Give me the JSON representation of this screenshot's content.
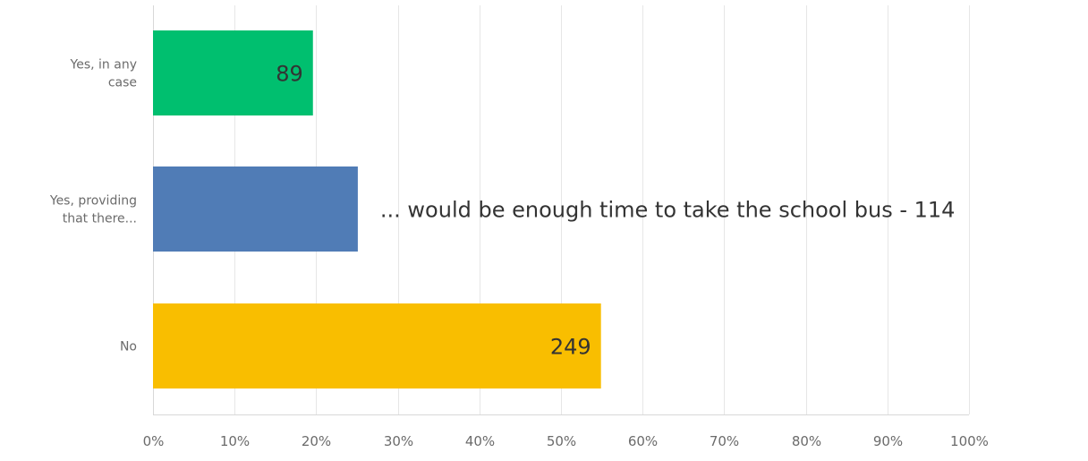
{
  "chart_data": {
    "type": "bar",
    "orientation": "horizontal",
    "categories": [
      "Yes, in any case",
      "Yes, providing that there...",
      "No"
    ],
    "category_lines": [
      [
        "Yes, in any",
        "case"
      ],
      [
        "Yes, providing",
        "that there..."
      ],
      [
        "No"
      ]
    ],
    "values": [
      19.6,
      25.1,
      54.9
    ],
    "data_labels": [
      "89",
      "... would be enough time to take the school bus - 114",
      "249"
    ],
    "colors": [
      "#00bf6f",
      "#507cb6",
      "#f9be00"
    ],
    "xlim": [
      0,
      100
    ],
    "xticks": [
      "0%",
      "10%",
      "20%",
      "30%",
      "40%",
      "50%",
      "60%",
      "70%",
      "80%",
      "90%",
      "100%"
    ],
    "grid": true,
    "title": "",
    "xlabel": "",
    "ylabel": ""
  }
}
